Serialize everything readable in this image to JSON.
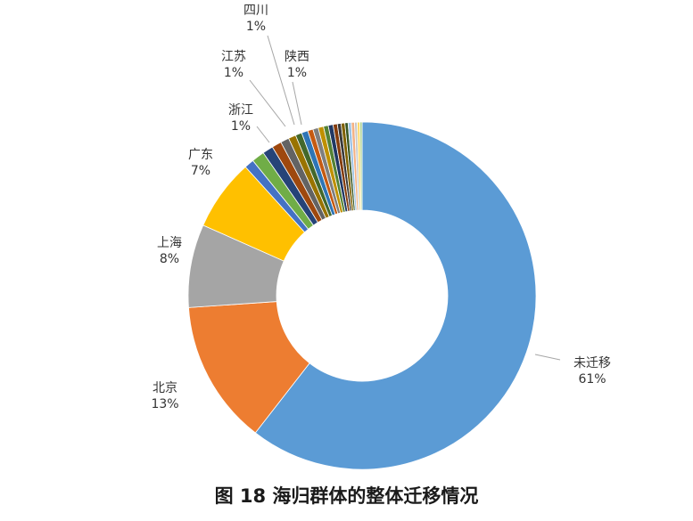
{
  "caption": "图 18 海归群体的整体迁移情况",
  "chart_data": {
    "type": "pie",
    "donut": true,
    "title": "",
    "slices": [
      {
        "label": "未迁移",
        "pct_label": "61%",
        "value": 61.0,
        "color": "#5b9bd5"
      },
      {
        "label": "北京",
        "pct_label": "13%",
        "value": 13.5,
        "color": "#ed7d31"
      },
      {
        "label": "上海",
        "pct_label": "8%",
        "value": 7.8,
        "color": "#a5a5a5"
      },
      {
        "label": "广东",
        "pct_label": "7%",
        "value": 6.7,
        "color": "#ffc000"
      },
      {
        "label": "",
        "value": 0.9,
        "color": "#4472c4"
      },
      {
        "label": "浙江",
        "pct_label": "1%",
        "value": 1.2,
        "color": "#70ad47"
      },
      {
        "label": "江苏",
        "pct_label": "1%",
        "value": 1.0,
        "color": "#264478"
      },
      {
        "label": "四川",
        "pct_label": "1%",
        "value": 0.9,
        "color": "#9e480e"
      },
      {
        "label": "陕西",
        "pct_label": "1%",
        "value": 0.8,
        "color": "#636363"
      },
      {
        "label": "",
        "value": 0.7,
        "color": "#997300"
      },
      {
        "label": "",
        "value": 0.6,
        "color": "#43682b"
      },
      {
        "label": "",
        "value": 0.6,
        "color": "#2e75b6"
      },
      {
        "label": "",
        "value": 0.5,
        "color": "#c55a11"
      },
      {
        "label": "",
        "value": 0.5,
        "color": "#7f7f7f"
      },
      {
        "label": "",
        "value": 0.5,
        "color": "#bf9000"
      },
      {
        "label": "",
        "value": 0.45,
        "color": "#548235"
      },
      {
        "label": "",
        "value": 0.45,
        "color": "#203864"
      },
      {
        "label": "",
        "value": 0.4,
        "color": "#843c0c"
      },
      {
        "label": "",
        "value": 0.35,
        "color": "#3a3a3a"
      },
      {
        "label": "",
        "value": 0.35,
        "color": "#7f6000"
      },
      {
        "label": "",
        "value": 0.3,
        "color": "#375623"
      },
      {
        "label": "",
        "value": 0.3,
        "color": "#9dc3e6"
      },
      {
        "label": "",
        "value": 0.3,
        "color": "#f4b183"
      },
      {
        "label": "",
        "value": 0.25,
        "color": "#c9c9c9"
      },
      {
        "label": "",
        "value": 0.25,
        "color": "#ffd966"
      },
      {
        "label": "",
        "value": 0.2,
        "color": "#a9d18e"
      }
    ]
  }
}
